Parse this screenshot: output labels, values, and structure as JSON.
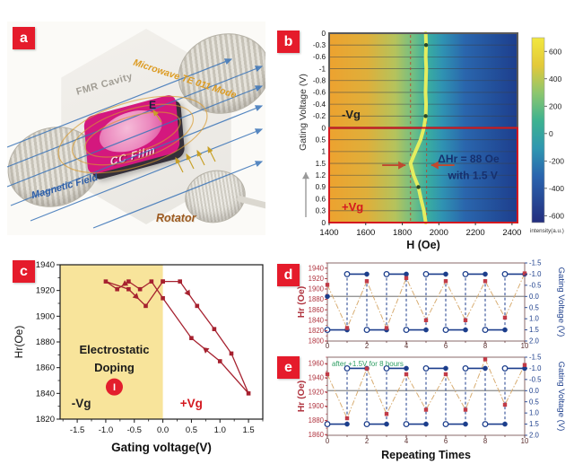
{
  "panels": {
    "a": {
      "tag": "a",
      "labels": {
        "fmr_cavity": "FMR Cavity",
        "microwave_mode": "Microwave TE 011 Mode",
        "cc_film": "CC Film",
        "e_field": "E",
        "magnetic_field": "Magnetic Field",
        "rotator": "Rotator"
      }
    },
    "b": {
      "tag": "b"
    },
    "c": {
      "tag": "c"
    },
    "d": {
      "tag": "d"
    },
    "e": {
      "tag": "e"
    }
  },
  "chart_data": [
    {
      "id": "b",
      "type": "heatmap",
      "xlabel": "H (Oe)",
      "ylabel": "Gating Voltage (V)",
      "xlim": [
        1400,
        2430
      ],
      "x_ticks": [
        1400,
        1600,
        1800,
        2000,
        2200,
        2400
      ],
      "row_labels_top_to_bottom": [
        "0",
        "-0.3",
        "-0.6",
        "-1",
        "-0.8",
        "-0.6",
        "-0.4",
        "-0.2",
        "0",
        "0.5",
        "1",
        "1.5",
        "1.2",
        "0.9",
        "0.6",
        "0.3",
        "0"
      ],
      "region_neg": {
        "label": "-Vg",
        "color": "#222222",
        "border": "#5a5a5a"
      },
      "region_pos": {
        "label": "+Vg",
        "color": "#d41920",
        "border": "#d41920"
      },
      "gradient_stops": [
        [
          0,
          "#eda22f"
        ],
        [
          0.2,
          "#dfaf3a"
        ],
        [
          0.35,
          "#b5c35c"
        ],
        [
          0.45,
          "#6fbe85"
        ],
        [
          0.52,
          "#3aae9f"
        ],
        [
          0.6,
          "#2f93b2"
        ],
        [
          0.72,
          "#2a66ad"
        ],
        [
          1,
          "#1d3e8d"
        ]
      ],
      "trace_H_by_row": [
        1928,
        1930,
        1928,
        1931,
        1929,
        1927,
        1930,
        1928,
        1918,
        1900,
        1872,
        1845,
        1862,
        1888,
        1902,
        1918,
        1928
      ],
      "trace_color": "#e4ed5f",
      "marker_rows": [
        1,
        7,
        13
      ],
      "dashed_H": [
        1845,
        1933
      ],
      "annotation_line1": "ΔHr = 88 Oe",
      "annotation_line2": "with 1.5 V",
      "annotation_color": "#16306e",
      "arrow_color": "#c0492f",
      "colorbar": {
        "ticks": [
          600,
          400,
          200,
          0,
          -200,
          -400,
          -600
        ],
        "label": "intensity(a.u.)",
        "gradient_stops": [
          [
            0,
            "#f2e83e"
          ],
          [
            0.15,
            "#e3c93a"
          ],
          [
            0.3,
            "#8cc66e"
          ],
          [
            0.45,
            "#3db290"
          ],
          [
            0.6,
            "#2f96b0"
          ],
          [
            0.75,
            "#2a64ae"
          ],
          [
            1,
            "#232e7e"
          ]
        ]
      }
    },
    {
      "id": "c",
      "type": "line",
      "xlabel": "Gating voltage(V)",
      "ylabel": "Hr(Oe)",
      "xlim": [
        -1.8,
        1.75
      ],
      "ylim": [
        1820,
        1940
      ],
      "x_ticks": [
        "-1.5",
        "-1.0",
        "-0.5",
        "0.0",
        "0.5",
        "1.0",
        "1.5"
      ],
      "y_ticks": [
        1820,
        1840,
        1860,
        1880,
        1900,
        1920,
        1940
      ],
      "shade": {
        "x_from": -1.8,
        "x_to": 0.0,
        "color": "#f8e49b"
      },
      "series_color": "#a6212f",
      "points": [
        [
          0.0,
          1927
        ],
        [
          0.3,
          1927
        ],
        [
          0.6,
          1908
        ],
        [
          0.9,
          1890
        ],
        [
          1.2,
          1871
        ],
        [
          1.5,
          1840
        ],
        [
          1.0,
          1865
        ],
        [
          0.5,
          1883
        ],
        [
          0.0,
          1914
        ],
        [
          -0.2,
          1927
        ],
        [
          -0.4,
          1921
        ],
        [
          -0.6,
          1927
        ],
        [
          -0.8,
          1921
        ],
        [
          -1.0,
          1927
        ],
        [
          -0.6,
          1921
        ],
        [
          -0.3,
          1908
        ],
        [
          0.0,
          1927
        ]
      ],
      "arrows": [
        [
          [
            0.3,
            1927
          ],
          [
            0.6,
            1908
          ]
        ],
        [
          [
            1.0,
            1865
          ],
          [
            0.5,
            1883
          ]
        ],
        [
          [
            -0.6,
            1927
          ],
          [
            -0.8,
            1921
          ]
        ],
        [
          [
            -0.6,
            1921
          ],
          [
            -0.3,
            1908
          ]
        ]
      ],
      "labels": {
        "region1": "Electrostatic",
        "region2": "Doping",
        "badge": "I",
        "neg": "-Vg",
        "pos": "+Vg"
      },
      "badge_color": "#e31e2d",
      "pos_color": "#d41920"
    },
    {
      "id": "d",
      "type": "dual-line",
      "ylabel_left": "Hr (Oe)",
      "ylabel_right": "Gating Voltage (V)",
      "xlim": [
        0,
        10
      ],
      "x_ticks": [
        0,
        2,
        4,
        6,
        8,
        10
      ],
      "ylim_left": [
        1800,
        1950
      ],
      "y_ticks_left": [
        1800,
        1820,
        1840,
        1860,
        1880,
        1900,
        1920,
        1940
      ],
      "y_ticks_right": [
        "-1.5",
        "-1.0",
        "-0.5",
        "0.0",
        "0.5",
        "1.0",
        "1.5",
        "2.0"
      ],
      "hr_x": [
        0,
        1,
        2,
        3,
        4,
        5,
        6,
        7,
        8,
        9,
        10
      ],
      "hr_values": [
        1908,
        1825,
        1915,
        1825,
        1921,
        1840,
        1915,
        1840,
        1915,
        1845,
        1930
      ],
      "voltage_segments": [
        {
          "x": [
            0,
            1
          ],
          "v": 1.5
        },
        {
          "x": [
            1,
            2
          ],
          "v": -1.0
        },
        {
          "x": [
            2,
            3
          ],
          "v": 1.5
        },
        {
          "x": [
            3,
            4
          ],
          "v": -1.0
        },
        {
          "x": [
            4,
            5
          ],
          "v": 1.5
        },
        {
          "x": [
            5,
            6
          ],
          "v": -1.0
        },
        {
          "x": [
            6,
            7
          ],
          "v": 1.5
        },
        {
          "x": [
            7,
            8
          ],
          "v": -1.0
        },
        {
          "x": [
            8,
            9
          ],
          "v": 1.5
        },
        {
          "x": [
            9,
            10
          ],
          "v": -1.0
        }
      ],
      "initial_voltage_point": [
        0,
        0.0
      ],
      "zero_line_v": 0.0,
      "colors": {
        "hr": "#c23b47",
        "hr_line": "#d8ad72",
        "voltage": "#1c3e8c",
        "zero_line": "#8a8a8a",
        "tick_left": "#b03540",
        "tick_x": "#5a2d2d"
      }
    },
    {
      "id": "e",
      "type": "dual-line",
      "xlabel": "Repeating Times",
      "ylabel_left": "Hr (Oe)",
      "ylabel_right": "Gating Voltage (V)",
      "annotation": "after +1.5V for 8 hours",
      "annotation_color": "#2e9e63",
      "xlim": [
        0,
        10
      ],
      "x_ticks": [
        0,
        2,
        4,
        6,
        8,
        10
      ],
      "ylim_left": [
        1859,
        1969
      ],
      "y_ticks_left": [
        1860,
        1880,
        1900,
        1920,
        1940,
        1960
      ],
      "y_ticks_right": [
        "-1.5",
        "-1.0",
        "-0.5",
        "0.0",
        "0.5",
        "1.0",
        "1.5",
        "2.0"
      ],
      "hr_x": [
        0,
        1,
        2,
        3,
        4,
        5,
        6,
        7,
        8,
        9,
        10
      ],
      "hr_values": [
        1945,
        1883,
        1953,
        1889,
        1945,
        1895,
        1945,
        1895,
        1966,
        1902,
        1958
      ],
      "voltage_segments": [
        {
          "x": [
            0,
            1
          ],
          "v": 1.5
        },
        {
          "x": [
            1,
            2
          ],
          "v": -1.0
        },
        {
          "x": [
            2,
            3
          ],
          "v": 1.5
        },
        {
          "x": [
            3,
            4
          ],
          "v": -1.0
        },
        {
          "x": [
            4,
            5
          ],
          "v": 1.5
        },
        {
          "x": [
            5,
            6
          ],
          "v": -1.0
        },
        {
          "x": [
            6,
            7
          ],
          "v": 1.5
        },
        {
          "x": [
            7,
            8
          ],
          "v": -1.0
        },
        {
          "x": [
            8,
            9
          ],
          "v": 1.5
        },
        {
          "x": [
            9,
            10
          ],
          "v": -1.0
        }
      ],
      "zero_line_v": 0.0,
      "colors": {
        "hr": "#c23b47",
        "hr_line": "#d8ad72",
        "voltage": "#1c3e8c",
        "zero_line": "#8a8a8a",
        "tick_left": "#b03540",
        "tick_x": "#5a2d2d"
      }
    }
  ]
}
